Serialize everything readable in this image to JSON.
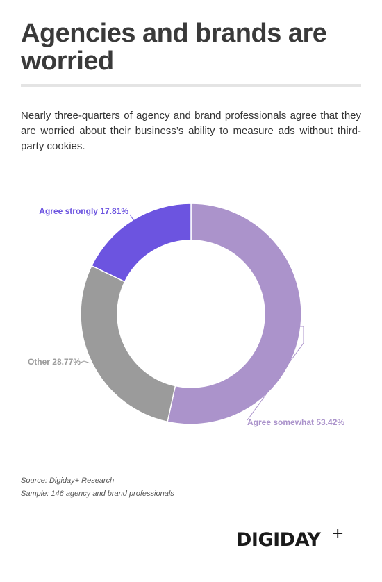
{
  "header": {
    "title": "Agencies and brands are worried",
    "subtitle": "Nearly three-quarters of agency and brand professionals agree that they are worried about their business’s ability to measure ads without third-party cookies."
  },
  "chart_data": {
    "type": "pie",
    "donut": true,
    "slices": [
      {
        "label": "Agree somewhat 53.42%",
        "value": 53.42,
        "color": "#ab93cb"
      },
      {
        "label": "Other 28.77%",
        "value": 28.77,
        "color": "#9b9b9b"
      },
      {
        "label": "Agree strongly 17.81%",
        "value": 17.81,
        "color": "#6c54e0"
      }
    ]
  },
  "footer": {
    "source": "Source: Digiday+ Research",
    "sample": "Sample: 146 agency and brand professionals",
    "logo_text": "DIGIDAY",
    "logo_plus": "+"
  }
}
